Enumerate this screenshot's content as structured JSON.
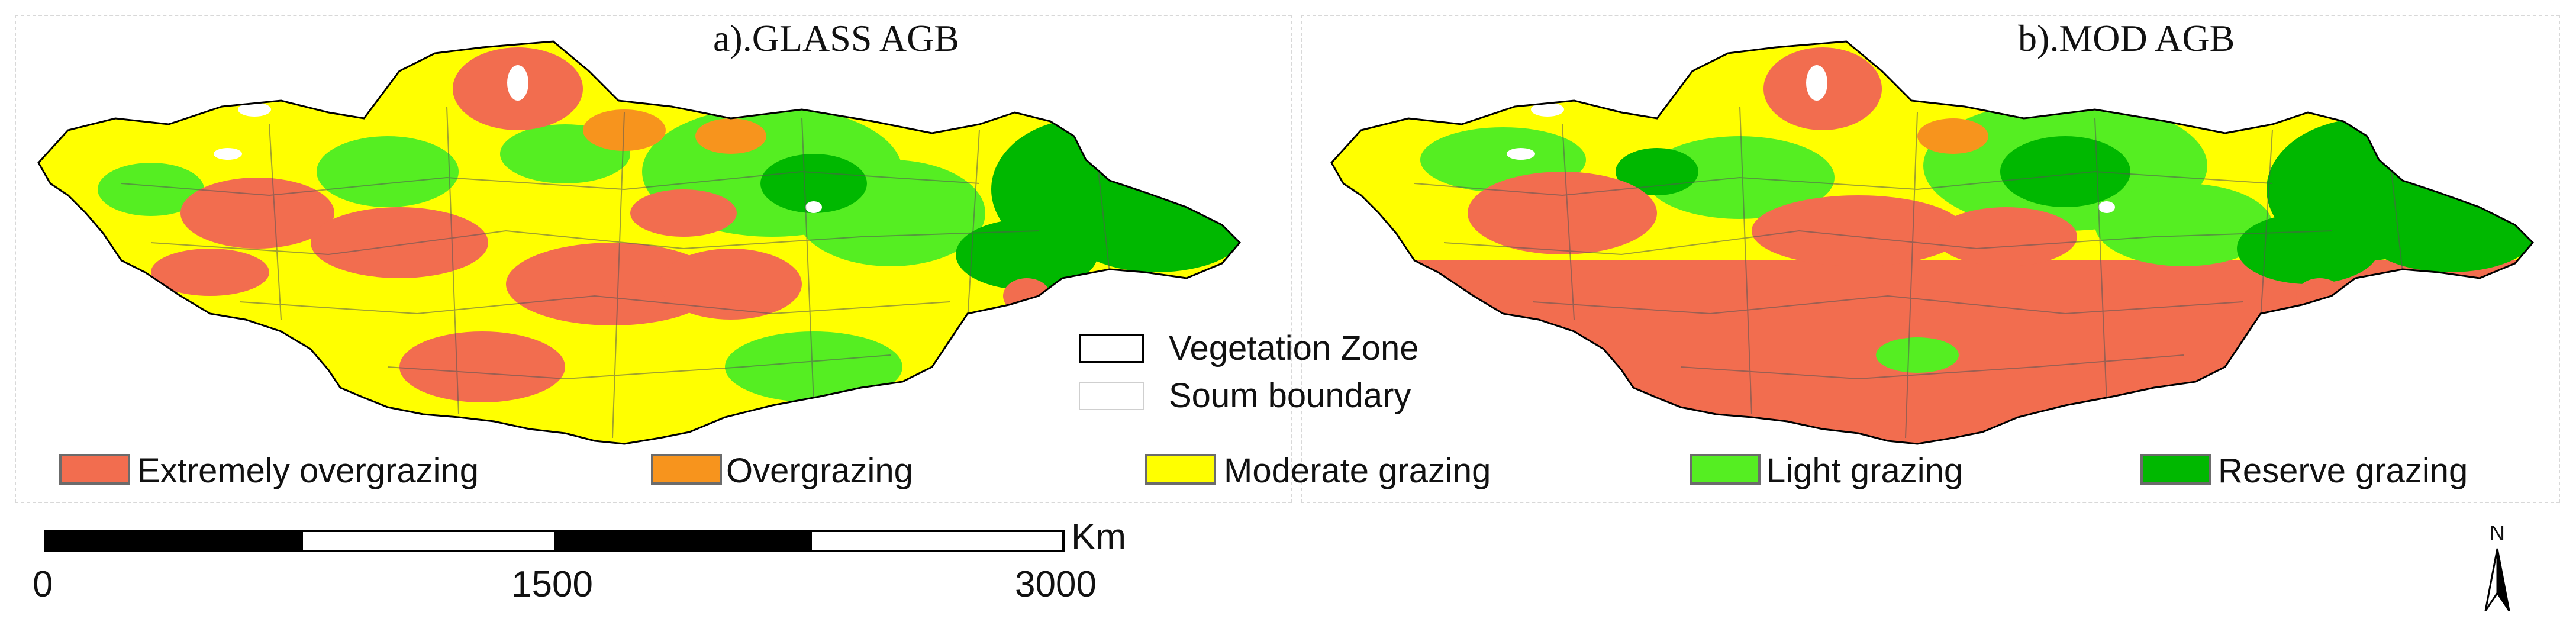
{
  "panels": {
    "a_title": "a).GLASS AGB",
    "b_title": "b).MOD AGB"
  },
  "boundary_legend": {
    "vegetation_zone": "Vegetation Zone",
    "soum_boundary": "Soum boundary"
  },
  "legend": [
    {
      "label": "Extremely overgrazing",
      "color": "#f26d4f"
    },
    {
      "label": "Overgrazing",
      "color": "#f7941d"
    },
    {
      "label": "Moderate grazing",
      "color": "#ffff00"
    },
    {
      "label": "Light grazing",
      "color": "#55ee22"
    },
    {
      "label": "Reserve grazing",
      "color": "#00b800"
    }
  ],
  "scalebar": {
    "unit": "Km",
    "ticks": [
      "0",
      "1500",
      "3000"
    ]
  },
  "north_arrow": {
    "label": "N"
  }
}
